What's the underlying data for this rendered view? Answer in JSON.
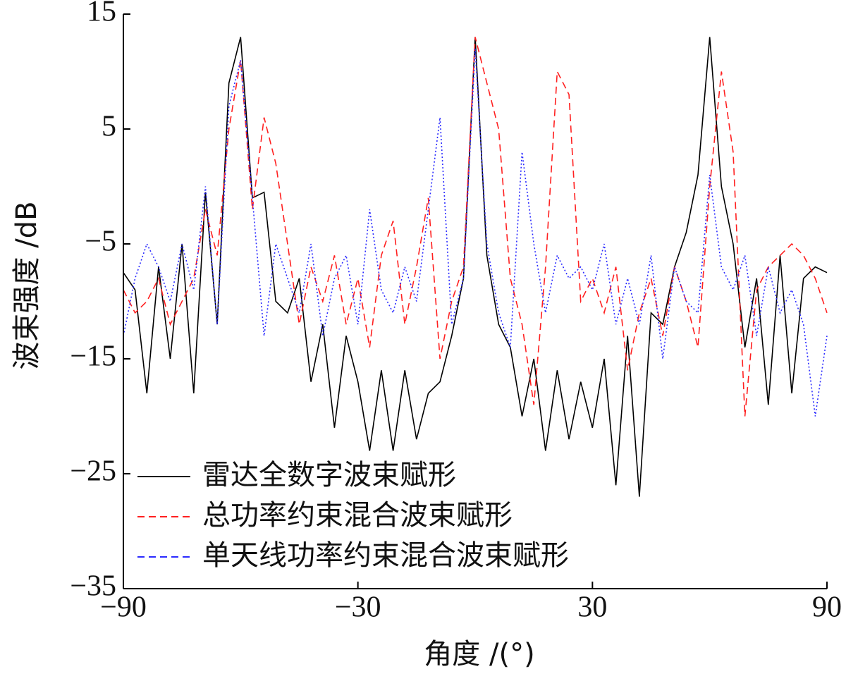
{
  "chart_data": {
    "type": "line",
    "x_label": "角度 /(°)",
    "y_label": "波束强度 /dB",
    "x": [
      -90,
      -87,
      -84,
      -81,
      -78,
      -75,
      -72,
      -69,
      -66,
      -63,
      -60,
      -57,
      -54,
      -51,
      -48,
      -45,
      -42,
      -39,
      -36,
      -33,
      -30,
      -27,
      -24,
      -21,
      -18,
      -15,
      -12,
      -9,
      -6,
      -3,
      0,
      3,
      6,
      9,
      12,
      15,
      18,
      21,
      24,
      27,
      30,
      33,
      36,
      39,
      42,
      45,
      48,
      51,
      54,
      57,
      60,
      63,
      66,
      69,
      72,
      75,
      78,
      81,
      84,
      87,
      90
    ],
    "series": [
      {
        "name": "雷达全数字波束赋形",
        "color": "#000000",
        "line_style": "solid",
        "values": [
          -7.5,
          -9,
          -18,
          -7,
          -15,
          -5,
          -18,
          -0.5,
          -12,
          9,
          13,
          -1,
          -0.5,
          -10,
          -11,
          -8,
          -17,
          -12,
          -21,
          -13,
          -17,
          -23,
          -16,
          -23,
          -16,
          -22,
          -18,
          -17,
          -13,
          -8,
          13,
          -6,
          -12,
          -14,
          -20,
          -15,
          -23,
          -16,
          -22,
          -17,
          -21,
          -15,
          -26,
          -13,
          -27,
          -11,
          -12,
          -7,
          -4,
          1,
          13,
          0,
          -5,
          -14,
          -8,
          -19,
          -6,
          -18,
          -8,
          -7,
          -7.5
        ]
      },
      {
        "name": "总功率约束混合波束赋形",
        "color": "#ff2020",
        "line_style": "dashed",
        "values": [
          -9,
          -11,
          -10,
          -8,
          -12,
          -10,
          -8,
          -2,
          -6,
          5,
          11,
          -2,
          6,
          2,
          -5,
          -12,
          -7,
          -10,
          -6,
          -12,
          -8,
          -14,
          -6,
          -3,
          -12,
          -7,
          -1,
          -15,
          -10,
          -7,
          13,
          9,
          5,
          -8,
          -12,
          -19,
          -7,
          10,
          8,
          -10,
          -8,
          -11,
          -7,
          -16,
          -11,
          -8,
          -13,
          -7,
          -10,
          -14,
          0,
          10,
          3,
          -20,
          -9,
          -7,
          -6,
          -5,
          -6,
          -8,
          -11
        ]
      },
      {
        "name": "单天线功率约束混合波束赋形",
        "color": "#2a2aff",
        "line_style": "dotted",
        "values": [
          -13,
          -8,
          -5,
          -7,
          -10,
          -5,
          -9,
          0,
          -12,
          7,
          11,
          -1,
          -13,
          -5,
          -8,
          -11,
          -5,
          -13,
          -8,
          -6,
          -12,
          -2,
          -9,
          -11,
          -7,
          -10,
          -2,
          6,
          -12,
          -8,
          12,
          -5,
          -11,
          -14,
          3,
          -5,
          -11,
          -6,
          -8,
          -7,
          -9,
          -5,
          -12,
          -8,
          -12,
          -6,
          -15,
          -7,
          -10,
          -11,
          1,
          -7,
          -9,
          -6,
          -13,
          -7,
          -11,
          -9,
          -12,
          -20,
          -13
        ]
      }
    ],
    "xlim": [
      -90,
      90
    ],
    "xticks": [
      {
        "value": -90,
        "label": "−90"
      },
      {
        "value": -30,
        "label": "−30"
      },
      30,
      90
    ],
    "ylim": [
      -35,
      15
    ],
    "yticks": [
      {
        "value": -35,
        "label": "−35"
      },
      {
        "value": -25,
        "label": "−25"
      },
      {
        "value": -15,
        "label": "−15"
      },
      {
        "value": -5,
        "label": "−5"
      },
      5,
      15
    ],
    "legend": "lower-left"
  }
}
